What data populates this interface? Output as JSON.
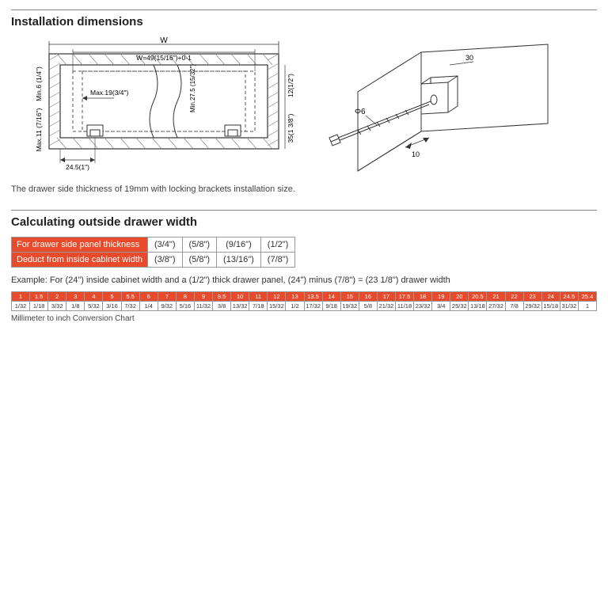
{
  "titles": {
    "install": "Installation dimensions",
    "calc": "Calculating outside drawer width"
  },
  "note": "The drawer side thickness of 19mm with locking brackets installation size.",
  "diagram1": {
    "W": "W",
    "W_formula": "W=49(15/16\")+0-1",
    "Min6": "Min.6\n(1/4\")",
    "Max11": "Max.11\n(7/16\")",
    "Max19": "Max.19(3/4\")",
    "Min27_5": "Min.27.5\n(15/32\")",
    "d12": "12(1/2\")",
    "d35": "35(1 3/8\")",
    "d24_5": "24.5(1\")"
  },
  "diagram2": {
    "phi6": "Φ6",
    "d10": "10",
    "d30": "30"
  },
  "thickness": {
    "row1_label": "For drawer side panel thickness",
    "row2_label": "Deduct from inside cabinet width",
    "row1": [
      "(3/4\")",
      "(5/8\")",
      "(9/16\")",
      "(1/2\")"
    ],
    "row2": [
      "(3/8\")",
      "(5/8\")",
      "(13/16\")",
      "(7/8\")"
    ]
  },
  "example": "Example: For (24\") inside cabinet width and a (1/2\") thick drawer panel, (24\") minus (7/8\") = (23 1/8\") drawer width",
  "conversion": {
    "mm": [
      "1",
      "1.5",
      "2",
      "3",
      "4",
      "5",
      "5.5",
      "6",
      "7",
      "8",
      "9",
      "9.5",
      "10",
      "11",
      "12",
      "13",
      "13.5",
      "14",
      "15",
      "16",
      "17",
      "17.5",
      "18",
      "19",
      "20",
      "20.5",
      "21",
      "22",
      "23",
      "24",
      "24.5",
      "25.4"
    ],
    "inch": [
      "1/32",
      "1/18",
      "3/32",
      "1/8",
      "5/32",
      "3/16",
      "7/32",
      "1/4",
      "9/32",
      "5/16",
      "11/32",
      "3/8",
      "13/32",
      "7/18",
      "15/32",
      "1/2",
      "17/32",
      "9/18",
      "19/32",
      "5/8",
      "21/32",
      "11/18",
      "23/32",
      "3/4",
      "25/32",
      "13/18",
      "27/32",
      "7/8",
      "29/32",
      "15/18",
      "31/32",
      "1"
    ],
    "caption": "Millimeter to inch Conversion Chart"
  },
  "colors": {
    "accent": "#e84b2c",
    "line": "#333333",
    "dash": "#555555",
    "panel_fill": "#f5f5f5"
  }
}
